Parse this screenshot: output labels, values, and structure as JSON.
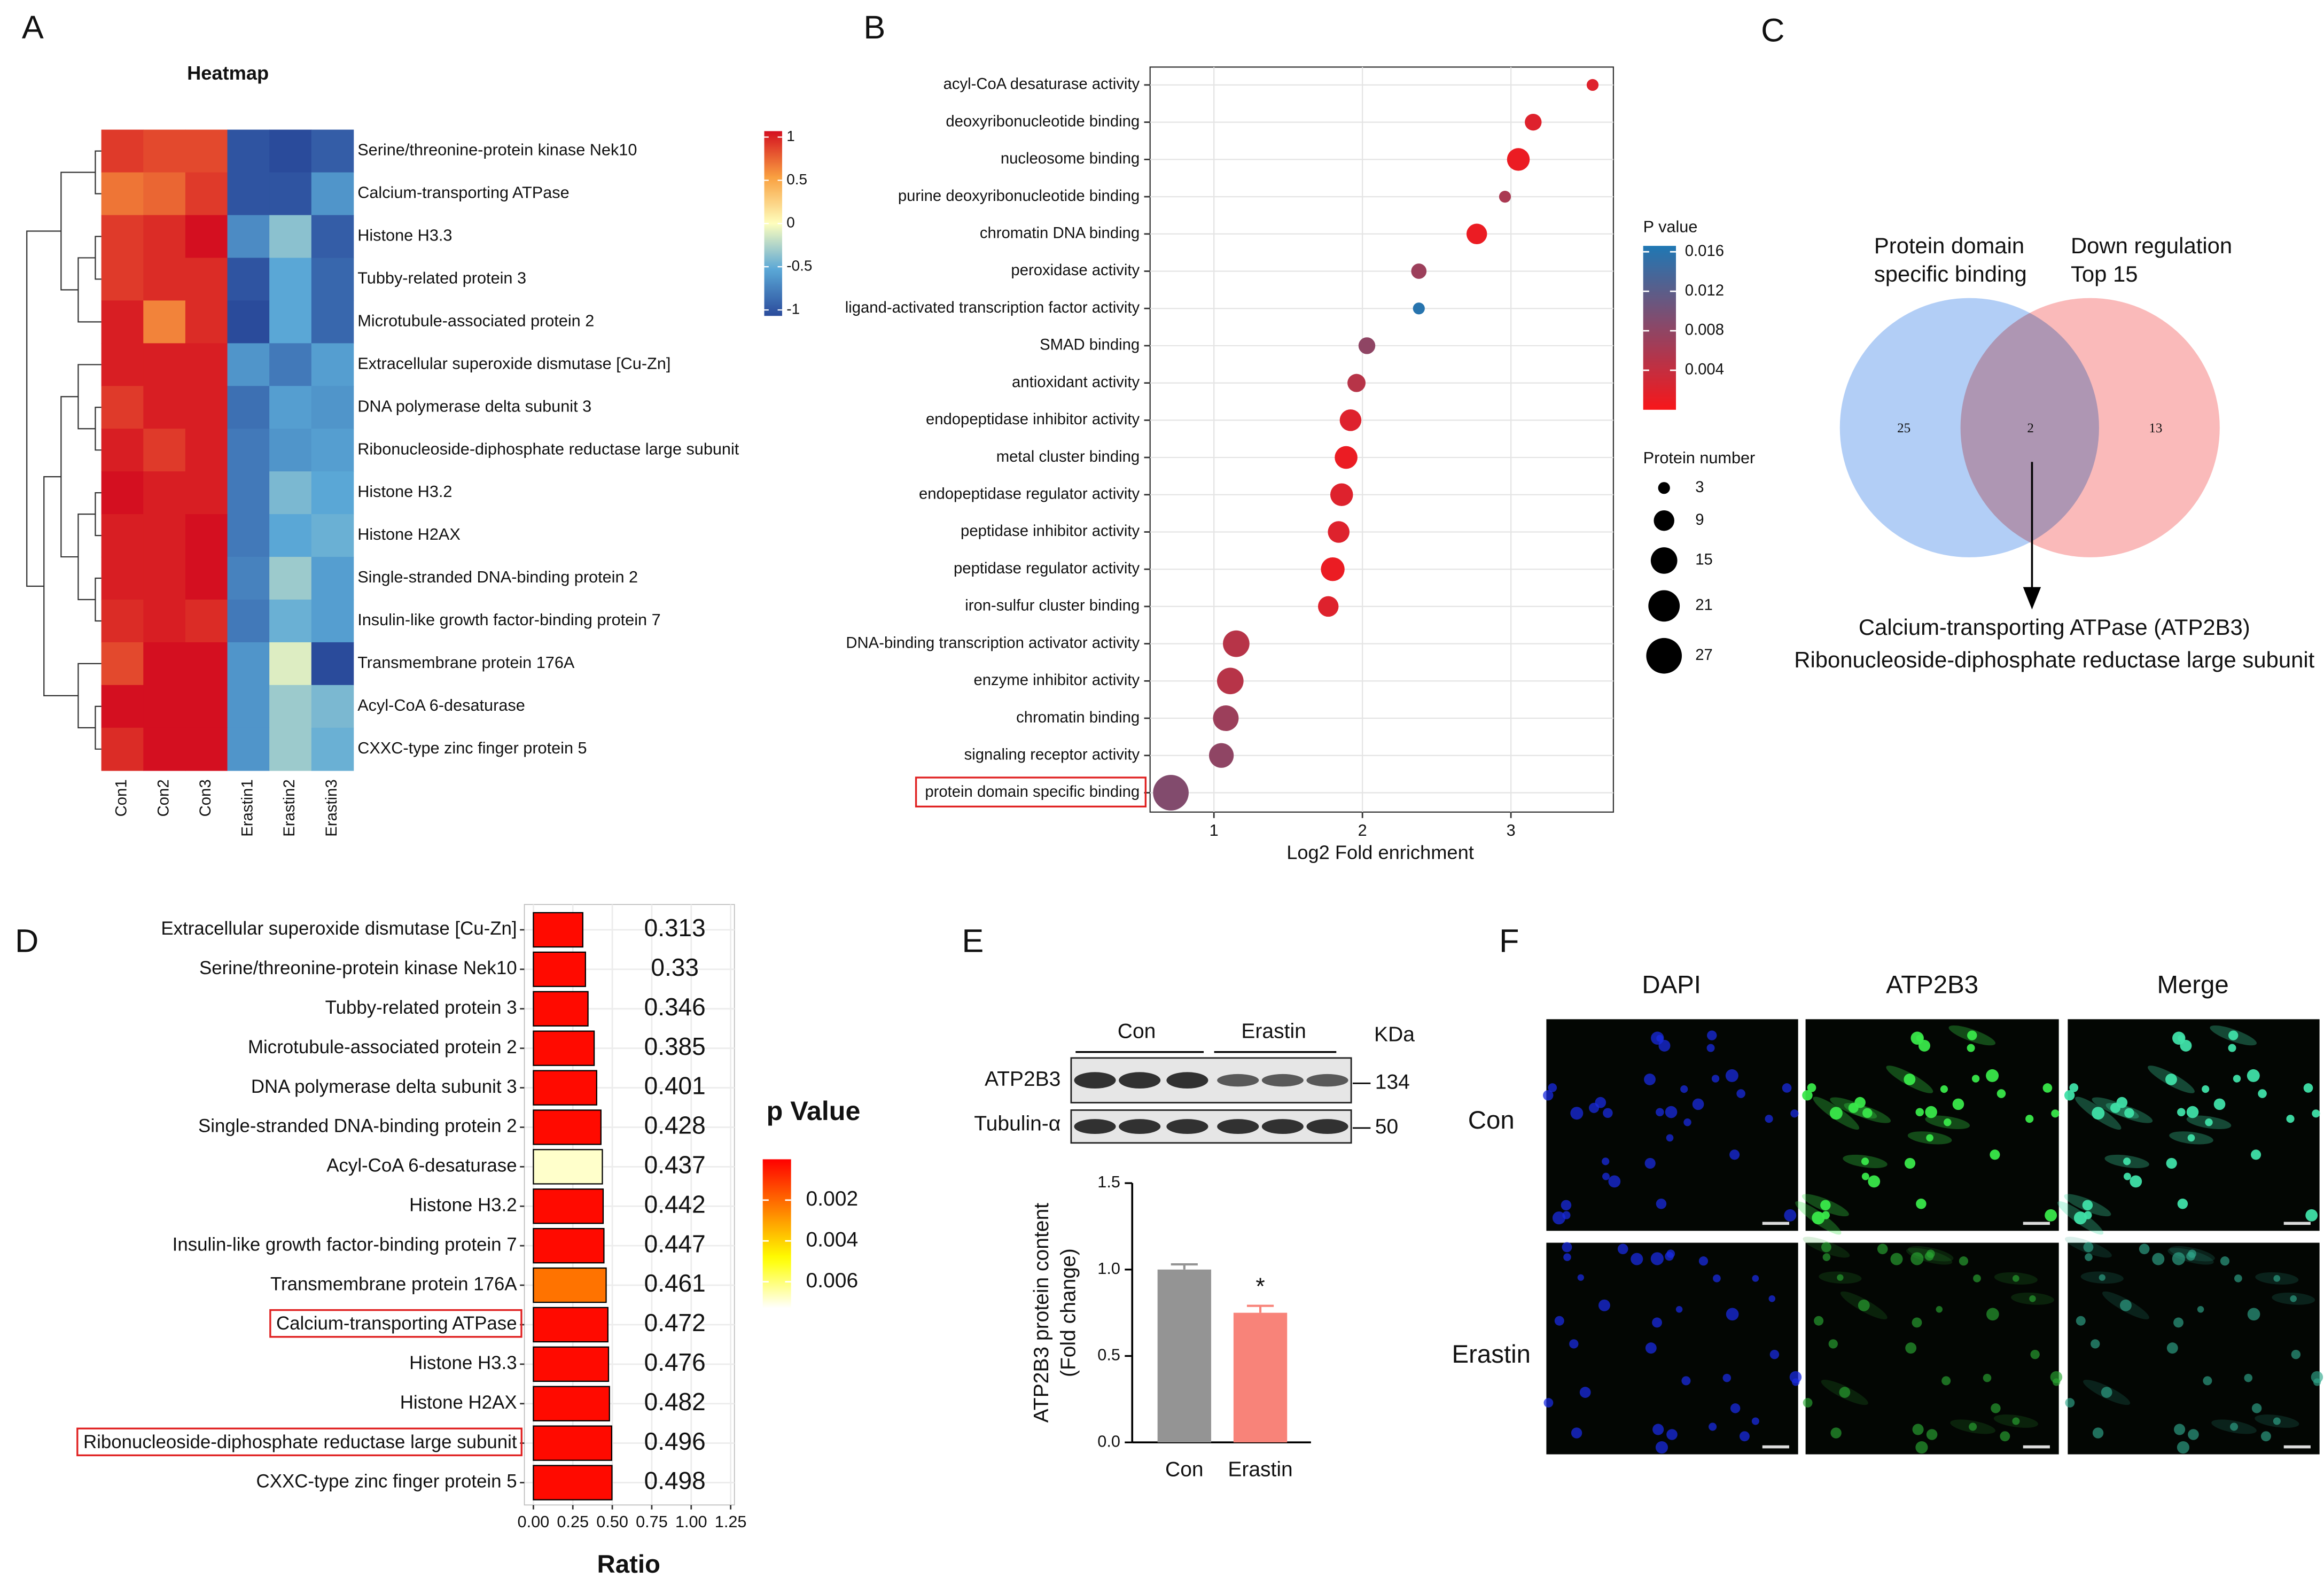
{
  "panels": [
    "A",
    "B",
    "C",
    "D",
    "E",
    "F"
  ],
  "chart_data": [
    {
      "type": "heatmap",
      "title": "Heatmap",
      "rows": [
        "Serine/threonine-protein kinase Nek10",
        "Calcium-transporting ATPase",
        "Histone H3.3",
        "Tubby-related protein 3",
        "Microtubule-associated protein 2",
        "Extracellular superoxide dismutase [Cu-Zn]",
        "DNA polymerase delta subunit 3",
        "Ribonucleoside-diphosphate reductase large subunit",
        "Histone H3.2",
        "Histone H2AX",
        "Single-stranded DNA-binding protein 2",
        "Insulin-like growth factor-binding protein 7",
        "Transmembrane protein 176A",
        "Acyl-CoA 6-desaturase",
        "CXXC-type zinc finger protein 5"
      ],
      "columns": [
        "Con1",
        "Con2",
        "Con3",
        "Erastin1",
        "Erastin2",
        "Erastin3"
      ],
      "values": [
        [
          0.85,
          0.8,
          0.8,
          -0.95,
          -1,
          -0.9
        ],
        [
          0.65,
          0.7,
          0.85,
          -0.95,
          -0.95,
          -0.6
        ],
        [
          0.85,
          0.9,
          1.05,
          -0.65,
          -0.35,
          -0.9
        ],
        [
          0.85,
          0.9,
          0.9,
          -0.95,
          -0.5,
          -0.85
        ],
        [
          0.95,
          0.6,
          0.9,
          -1,
          -0.5,
          -0.85
        ],
        [
          0.95,
          0.95,
          0.95,
          -0.6,
          -0.75,
          -0.55
        ],
        [
          0.85,
          0.95,
          0.95,
          -0.8,
          -0.55,
          -0.6
        ],
        [
          0.95,
          0.85,
          0.95,
          -0.75,
          -0.6,
          -0.55
        ],
        [
          1.05,
          0.95,
          0.95,
          -0.75,
          -0.4,
          -0.5
        ],
        [
          0.95,
          0.95,
          1.0,
          -0.75,
          -0.5,
          -0.45
        ],
        [
          0.95,
          0.95,
          1.0,
          -0.7,
          -0.3,
          -0.55
        ],
        [
          0.9,
          0.95,
          0.9,
          -0.75,
          -0.45,
          -0.55
        ],
        [
          0.8,
          1.0,
          1.0,
          -0.6,
          -0.1,
          -1.0
        ],
        [
          1.0,
          1.0,
          1.0,
          -0.6,
          -0.3,
          -0.4
        ],
        [
          0.9,
          1.0,
          1.0,
          -0.6,
          -0.3,
          -0.45
        ]
      ],
      "zlim": [
        -1,
        1
      ],
      "zticks": [
        1,
        0.5,
        0,
        -0.5,
        -1
      ],
      "colors": [
        "#2a4b9b",
        "#5aa7d6",
        "#fefebd",
        "#f9a040",
        "#d40f20"
      ]
    },
    {
      "type": "bubble",
      "xlabel": "Log2 Fold enrichment",
      "categories": [
        "acyl-CoA desaturase activity",
        "deoxyribonucleotide binding",
        "nucleosome binding",
        "purine deoxyribonucleotide binding",
        "chromatin DNA binding",
        "peroxidase activity",
        "ligand-activated transcription factor activity",
        "SMAD binding",
        "antioxidant activity",
        "endopeptidase inhibitor activity",
        "metal cluster binding",
        "endopeptidase regulator activity",
        "peptidase inhibitor activity",
        "peptidase regulator activity",
        "iron-sulfur cluster binding",
        "DNA-binding transcription activator activity",
        "enzyme inhibitor activity",
        "chromatin binding",
        "signaling receptor activity",
        "protein domain specific binding"
      ],
      "values": [
        3.55,
        3.15,
        3.05,
        2.96,
        2.77,
        2.38,
        2.38,
        2.03,
        1.96,
        1.92,
        1.89,
        1.86,
        1.84,
        1.8,
        1.77,
        1.15,
        1.11,
        1.08,
        1.05,
        0.71
      ],
      "sizes": [
        3,
        6,
        11,
        3,
        9,
        5,
        3,
        6,
        7,
        10,
        11,
        11,
        10,
        12,
        9,
        15,
        15,
        14,
        13,
        27
      ],
      "pvalues": [
        0.002,
        0.002,
        0.001,
        0.006,
        0.001,
        0.007,
        0.016,
        0.008,
        0.005,
        0.002,
        0.001,
        0.002,
        0.002,
        0.001,
        0.002,
        0.005,
        0.005,
        0.007,
        0.008,
        0.009
      ],
      "xlim": [
        0.57,
        3.69
      ],
      "xticks": [
        1,
        2,
        3
      ],
      "grid": true,
      "color_label": "P value",
      "color_lim": [
        0,
        0.0166
      ],
      "color_ticks": [
        0.016,
        0.012,
        0.008,
        0.004
      ],
      "colors": [
        "#f8161a",
        "#1f78b4"
      ],
      "size_label": "Protein number",
      "size_ticks": [
        3,
        9,
        15,
        21,
        27
      ],
      "highlight_index": 19
    },
    {
      "type": "barh",
      "xlabel": "Ratio",
      "categories": [
        "Extracellular superoxide dismutase [Cu-Zn]",
        "Serine/threonine-protein kinase Nek10",
        "Tubby-related protein 3",
        "Microtubule-associated protein 2",
        "DNA polymerase delta subunit 3",
        "Single-stranded DNA-binding protein 2",
        "Acyl-CoA 6-desaturase",
        "Histone H3.2",
        "Insulin-like growth factor-binding protein 7",
        "Transmembrane protein 176A",
        "Calcium-transporting ATPase",
        "Histone H3.3",
        "Histone H2AX",
        "Ribonucleoside-diphosphate reductase large subunit",
        "CXXC-type zinc finger protein 5"
      ],
      "values": [
        0.313,
        0.33,
        0.346,
        0.385,
        0.401,
        0.428,
        0.437,
        0.442,
        0.447,
        0.461,
        0.472,
        0.476,
        0.482,
        0.496,
        0.498
      ],
      "pvalues": [
        0.0002,
        0.0002,
        0.0002,
        0.0002,
        0.0002,
        0.0002,
        0.0068,
        0.0002,
        0.0002,
        0.0022,
        0.0002,
        0.0002,
        0.0002,
        0.0002,
        0.0002
      ],
      "xlim": [
        -0.057,
        1.274
      ],
      "xticks": [
        {
          "value": 0,
          "label": "0.00"
        },
        {
          "value": 0.25,
          "label": "0.25"
        },
        {
          "value": 0.5,
          "label": "0.50"
        },
        {
          "value": 0.75,
          "label": "0.75"
        },
        {
          "value": 1,
          "label": "1.00"
        },
        {
          "value": 1.25,
          "label": "1.25"
        }
      ],
      "grid": true,
      "color_label": "p Value",
      "color_lim": [
        0,
        0.0073
      ],
      "color_ticks": [
        0.002,
        0.004,
        0.006
      ],
      "colors": [
        "#ff0000",
        "#ff7f00",
        "#ffff00",
        "#ffffff"
      ],
      "highlight_indices": [
        10,
        13
      ]
    },
    {
      "type": "bar",
      "ylabel": [
        "ATP2B3 protein content",
        "(Fold change)"
      ],
      "categories": [
        "Con",
        "Erastin"
      ],
      "values": [
        1.0,
        0.75
      ],
      "errors": [
        0.03,
        0.04
      ],
      "colors": [
        "#949494",
        "#f88379"
      ],
      "ylim": [
        0,
        1.5
      ],
      "yticks": [
        {
          "value": 0,
          "label": "0.0"
        },
        {
          "value": 0.5,
          "label": "0.5"
        },
        {
          "value": 1,
          "label": "1.0"
        },
        {
          "value": 1.5,
          "label": "1.5"
        }
      ],
      "annotations": [
        {
          "text": "*",
          "index": 1
        }
      ]
    }
  ],
  "venn": {
    "sets": [
      {
        "label": [
          "Protein domain",
          "specific binding"
        ],
        "color": "#9fc2f4"
      },
      {
        "label": [
          "Down regulation",
          "Top 15"
        ],
        "color": "#f9a9a9"
      }
    ],
    "counts": [
      25,
      2,
      13
    ],
    "results": [
      {
        "text": "Calcium-transporting ATPase (ATP2B3)",
        "color": "#ee1c1c"
      },
      {
        "text": "Ribonucleoside-diphosphate reductase large subunit",
        "color": "#111111"
      }
    ]
  },
  "blot": {
    "groups": [
      "Con",
      "Erastin"
    ],
    "unit": "KDa",
    "bands": [
      {
        "name": "ATP2B3",
        "size": 134
      },
      {
        "name": "Tubulin-α",
        "size": 50
      }
    ]
  },
  "microscopy": {
    "columns": [
      "DAPI",
      "ATP2B3",
      "Merge"
    ],
    "rows": [
      "Con",
      "Erastin"
    ]
  }
}
